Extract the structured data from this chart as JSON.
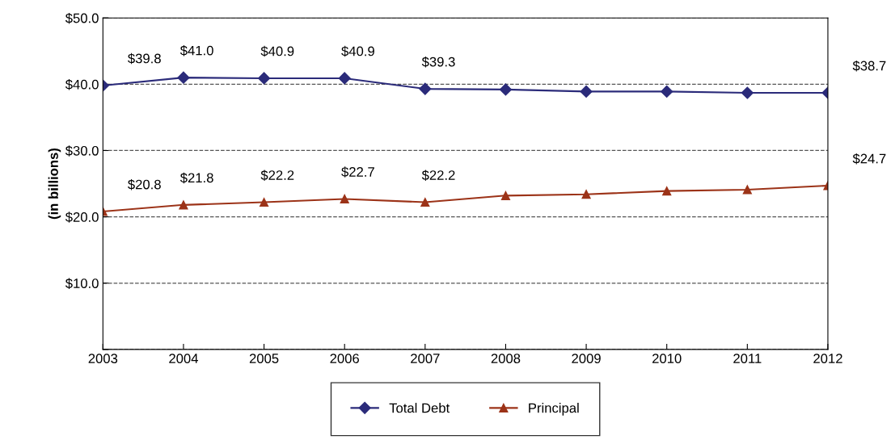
{
  "chart_data": {
    "type": "line",
    "ylabel": "(in billions)",
    "categories": [
      "2003",
      "2004",
      "2005",
      "2006",
      "2007",
      "2008",
      "2009",
      "2010",
      "2011",
      "2012"
    ],
    "series": [
      {
        "name": "Total Debt",
        "color": "#2b2b7a",
        "marker": "diamond",
        "values": [
          39.8,
          41.0,
          40.9,
          40.9,
          39.3,
          39.2,
          38.9,
          38.9,
          38.7,
          38.7
        ],
        "value_labels": [
          "$39.8",
          "$41.0",
          "$40.9",
          "$40.9",
          "$39.3",
          null,
          null,
          null,
          null,
          "$38.7"
        ]
      },
      {
        "name": "Principal",
        "color": "#9c3318",
        "marker": "triangle",
        "values": [
          20.8,
          21.8,
          22.2,
          22.7,
          22.2,
          23.2,
          23.4,
          23.9,
          24.1,
          24.7
        ],
        "value_labels": [
          "$20.8",
          "$21.8",
          "$22.2",
          "$22.7",
          "$22.2",
          null,
          null,
          null,
          null,
          "$24.7"
        ]
      }
    ],
    "ylim": [
      0,
      50
    ],
    "yticks": [
      {
        "value": 0,
        "label": null
      },
      {
        "value": 10,
        "label": "$10.0"
      },
      {
        "value": 20,
        "label": "$20.0"
      },
      {
        "value": 30,
        "label": "$30.0"
      },
      {
        "value": 40,
        "label": "$40.0"
      },
      {
        "value": 50,
        "label": "$50.0"
      }
    ],
    "grid": "y",
    "legend": "bottom",
    "line_style": "solid"
  }
}
